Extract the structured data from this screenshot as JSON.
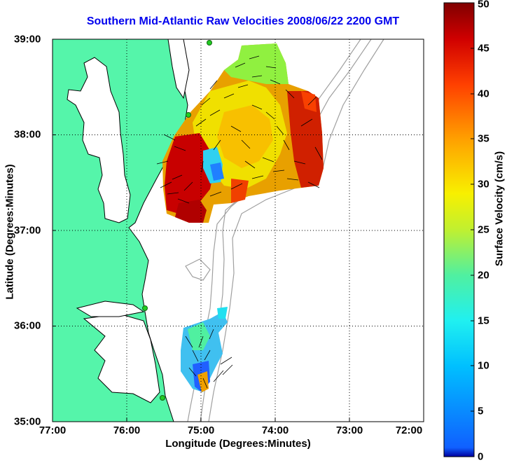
{
  "title": "Southern Mid-Atlantic Raw Velocities 2008/06/22 2200 GMT",
  "map": {
    "x_ticks": [
      "77:00",
      "76:00",
      "75:00",
      "74:00",
      "73:00",
      "72:00"
    ],
    "y_ticks": [
      "39:00",
      "38:00",
      "37:00",
      "36:00",
      "35:00"
    ],
    "x_label": "Longitude (Degrees:Minutes)",
    "y_label": "Latitude (Degrees:Minutes)",
    "lon_range": [
      -77,
      -72
    ],
    "lat_range": [
      35,
      39
    ],
    "grid": "dotted",
    "land_color": "#55f5aa",
    "colors": {
      "title": "#0000ee",
      "bathymetry": "#a0a0a0",
      "stations": "#22cc22"
    }
  },
  "colorbar": {
    "label": "Surface Velocity (cm/s)",
    "ticks": [
      "0",
      "5",
      "10",
      "15",
      "20",
      "25",
      "30",
      "35",
      "40",
      "45",
      "50"
    ],
    "min": 0,
    "max": 50,
    "colormap": "jet"
  }
}
